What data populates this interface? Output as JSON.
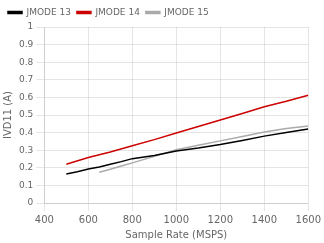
{
  "chart_data": {
    "type": "line",
    "xlabel": "Sample Rate (MSPS)",
    "ylabel": "IVD11 (A)",
    "xlim": [
      400,
      1600
    ],
    "ylim": [
      0,
      1
    ],
    "xticks": [
      400,
      600,
      800,
      1000,
      1200,
      1400,
      1600
    ],
    "yticks": [
      0,
      0.1,
      0.2,
      0.3,
      0.4,
      0.5,
      0.6,
      0.7,
      0.8,
      0.9,
      1
    ],
    "grid": true,
    "legend": "upper left",
    "series": [
      {
        "name": "JMODE 13",
        "color": "#000000",
        "x": [
          500,
          550,
          600,
          650,
          700,
          750,
          800,
          900,
          1000,
          1100,
          1200,
          1300,
          1400,
          1500,
          1600
        ],
        "values": [
          0.165,
          0.178,
          0.193,
          0.205,
          0.22,
          0.235,
          0.252,
          0.27,
          0.295,
          0.312,
          0.332,
          0.355,
          0.38,
          0.4,
          0.42
        ]
      },
      {
        "name": "JMODE 14",
        "color": "#cc0000",
        "x": [
          500,
          600,
          700,
          800,
          900,
          1000,
          1100,
          1200,
          1300,
          1400,
          1500,
          1600
        ],
        "values": [
          0.22,
          0.258,
          0.29,
          0.325,
          0.36,
          0.398,
          0.435,
          0.472,
          0.508,
          0.547,
          0.578,
          0.612
        ]
      },
      {
        "name": "JMODE 15",
        "color": "#aaaaaa",
        "x": [
          650,
          700,
          750,
          800,
          900,
          1000,
          1100,
          1200,
          1300,
          1400,
          1500,
          1600
        ],
        "values": [
          0.175,
          0.192,
          0.21,
          0.228,
          0.265,
          0.303,
          0.328,
          0.353,
          0.378,
          0.403,
          0.423,
          0.438
        ]
      }
    ]
  }
}
